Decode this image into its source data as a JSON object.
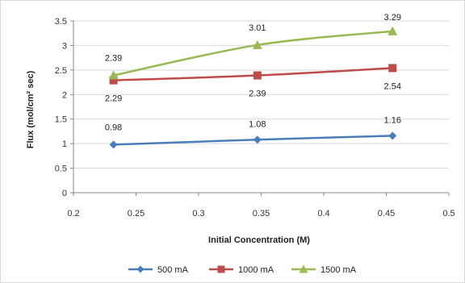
{
  "chart_data": {
    "type": "line",
    "title": "",
    "xlabel": "Initial Concentration (M)",
    "ylabel": "Flux (mol/cm² sec)",
    "xlim": [
      0.2,
      0.5
    ],
    "ylim": [
      0,
      3.5
    ],
    "xticks": [
      "0.2",
      "0.25",
      "0.3",
      "0.35",
      "0.4",
      "0.45",
      "0.5"
    ],
    "yticks": [
      "0",
      "0.5",
      "1",
      "1.5",
      "2",
      "2.5",
      "3",
      "3.5"
    ],
    "grid": "horizontal",
    "legend_position": "bottom",
    "x": [
      0.232,
      0.347,
      0.455
    ],
    "series": [
      {
        "name": "500 mA",
        "values": [
          0.98,
          1.08,
          1.16
        ],
        "labels": [
          "0.98",
          "1.08",
          "1.16"
        ],
        "color": "#4a7ebb",
        "marker": "diamond"
      },
      {
        "name": "1000 mA",
        "values": [
          2.29,
          2.39,
          2.54
        ],
        "labels": [
          "2.29",
          "2.39",
          "2.54"
        ],
        "color": "#be4b48",
        "marker": "square"
      },
      {
        "name": "1500 mA",
        "values": [
          2.39,
          3.01,
          3.29
        ],
        "labels": [
          "2.39",
          "3.01",
          "3.29"
        ],
        "color": "#98b954",
        "marker": "triangle"
      }
    ]
  }
}
